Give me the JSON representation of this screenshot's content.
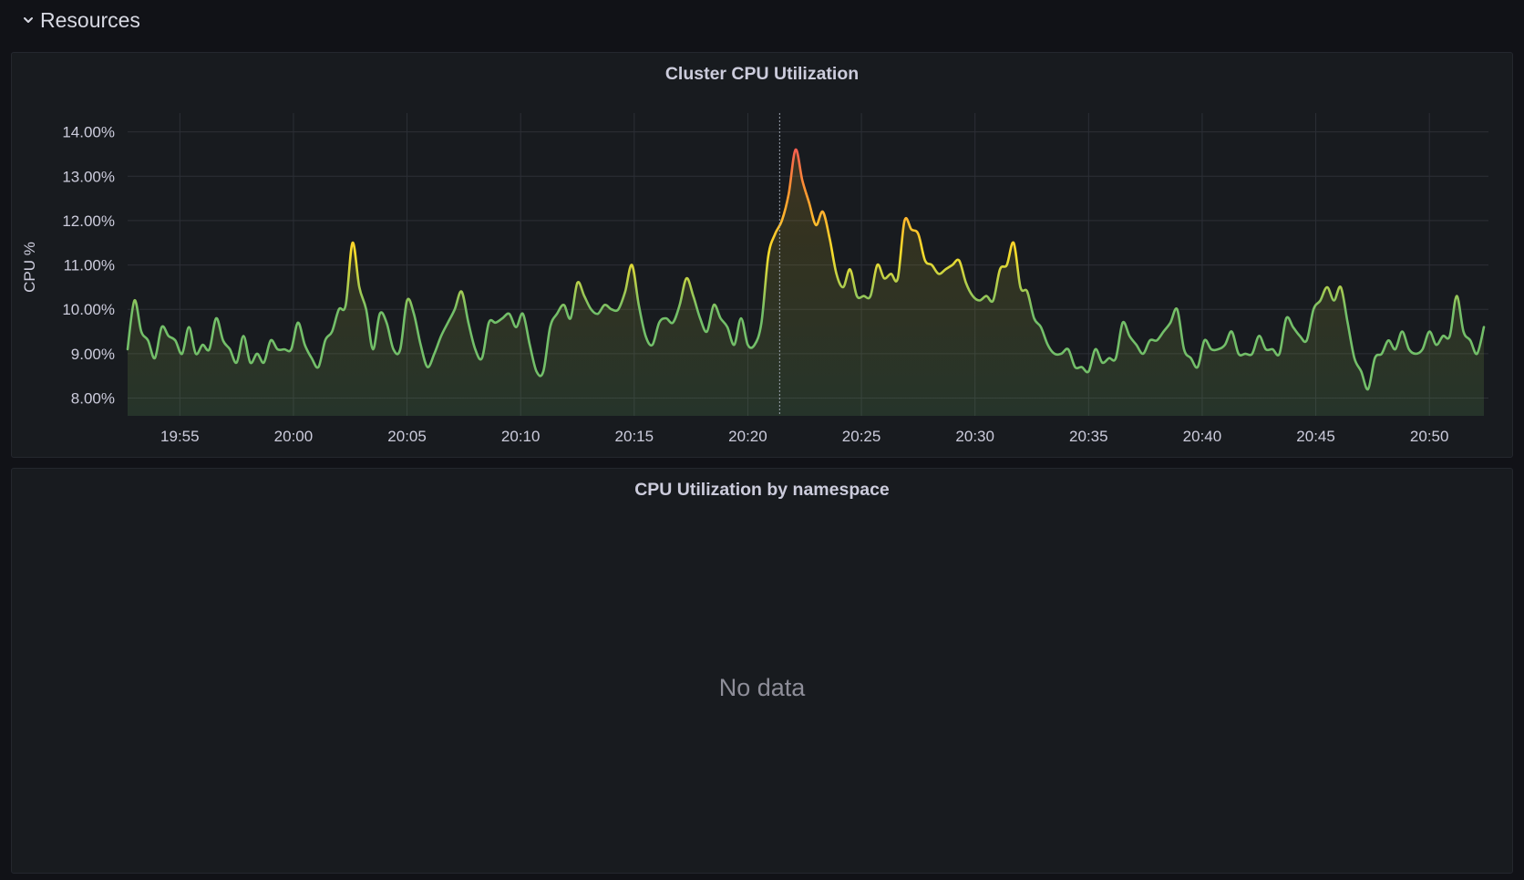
{
  "row": {
    "title": "Resources",
    "icon": "chevron-down-icon"
  },
  "panels": {
    "cpu": {
      "title": "Cluster CPU Utilization"
    },
    "namespace": {
      "title": "CPU Utilization by namespace",
      "empty_text": "No data"
    }
  },
  "colors": {
    "background": "#111217",
    "panel": "#181b1f",
    "low": "#73bf69",
    "mid": "#fade2a",
    "high": "#ff9830",
    "peak": "#f2495c"
  },
  "chart_data": {
    "type": "line",
    "title": "Cluster CPU Utilization",
    "xlabel": "",
    "ylabel": "CPU %",
    "ylim": [
      7.6,
      14.3
    ],
    "y_ticks": [
      "8.00%",
      "9.00%",
      "10.00%",
      "11.00%",
      "12.00%",
      "13.00%",
      "14.00%"
    ],
    "y_tick_values": [
      8,
      9,
      10,
      11,
      12,
      13,
      14
    ],
    "x_ticks": [
      "19:55",
      "20:00",
      "20:05",
      "20:10",
      "20:15",
      "20:20",
      "20:25",
      "20:30",
      "20:35",
      "20:40",
      "20:45",
      "20:50"
    ],
    "x_tick_minutes": [
      1195,
      1200,
      1205,
      1210,
      1215,
      1220,
      1225,
      1230,
      1235,
      1240,
      1245,
      1250
    ],
    "xlim_minutes": [
      1192.7,
      1252.6
    ],
    "grid": true,
    "hover_time_minutes": 1221.4,
    "series": [
      {
        "values": [
          [
            1192.7,
            9.1
          ],
          [
            1193.0,
            10.2
          ],
          [
            1193.3,
            9.5
          ],
          [
            1193.6,
            9.3
          ],
          [
            1193.9,
            8.9
          ],
          [
            1194.2,
            9.6
          ],
          [
            1194.5,
            9.4
          ],
          [
            1194.8,
            9.3
          ],
          [
            1195.1,
            9.0
          ],
          [
            1195.4,
            9.6
          ],
          [
            1195.7,
            9.0
          ],
          [
            1196.0,
            9.2
          ],
          [
            1196.3,
            9.1
          ],
          [
            1196.6,
            9.8
          ],
          [
            1196.9,
            9.3
          ],
          [
            1197.2,
            9.1
          ],
          [
            1197.5,
            8.8
          ],
          [
            1197.8,
            9.4
          ],
          [
            1198.1,
            8.8
          ],
          [
            1198.4,
            9.0
          ],
          [
            1198.7,
            8.8
          ],
          [
            1199.0,
            9.3
          ],
          [
            1199.3,
            9.1
          ],
          [
            1199.6,
            9.1
          ],
          [
            1199.9,
            9.1
          ],
          [
            1200.2,
            9.7
          ],
          [
            1200.5,
            9.2
          ],
          [
            1200.8,
            8.9
          ],
          [
            1201.1,
            8.7
          ],
          [
            1201.4,
            9.3
          ],
          [
            1201.7,
            9.5
          ],
          [
            1202.0,
            10.0
          ],
          [
            1202.3,
            10.1
          ],
          [
            1202.6,
            11.5
          ],
          [
            1202.9,
            10.5
          ],
          [
            1203.2,
            10.0
          ],
          [
            1203.5,
            9.1
          ],
          [
            1203.8,
            9.9
          ],
          [
            1204.1,
            9.7
          ],
          [
            1204.4,
            9.1
          ],
          [
            1204.7,
            9.1
          ],
          [
            1205.0,
            10.2
          ],
          [
            1205.3,
            9.9
          ],
          [
            1205.6,
            9.2
          ],
          [
            1205.9,
            8.7
          ],
          [
            1206.2,
            9.0
          ],
          [
            1206.5,
            9.4
          ],
          [
            1206.8,
            9.7
          ],
          [
            1207.1,
            10.0
          ],
          [
            1207.4,
            10.4
          ],
          [
            1207.7,
            9.7
          ],
          [
            1208.0,
            9.1
          ],
          [
            1208.3,
            8.9
          ],
          [
            1208.6,
            9.7
          ],
          [
            1208.9,
            9.7
          ],
          [
            1209.2,
            9.8
          ],
          [
            1209.5,
            9.9
          ],
          [
            1209.8,
            9.6
          ],
          [
            1210.1,
            9.9
          ],
          [
            1210.4,
            9.2
          ],
          [
            1210.7,
            8.6
          ],
          [
            1211.0,
            8.6
          ],
          [
            1211.3,
            9.6
          ],
          [
            1211.6,
            9.9
          ],
          [
            1211.9,
            10.1
          ],
          [
            1212.2,
            9.8
          ],
          [
            1212.5,
            10.6
          ],
          [
            1212.8,
            10.3
          ],
          [
            1213.1,
            10.0
          ],
          [
            1213.4,
            9.9
          ],
          [
            1213.7,
            10.1
          ],
          [
            1214.0,
            10.0
          ],
          [
            1214.3,
            10.0
          ],
          [
            1214.6,
            10.4
          ],
          [
            1214.9,
            11.0
          ],
          [
            1215.2,
            10.1
          ],
          [
            1215.5,
            9.4
          ],
          [
            1215.8,
            9.2
          ],
          [
            1216.1,
            9.7
          ],
          [
            1216.4,
            9.8
          ],
          [
            1216.7,
            9.7
          ],
          [
            1217.0,
            10.1
          ],
          [
            1217.3,
            10.7
          ],
          [
            1217.6,
            10.3
          ],
          [
            1217.9,
            9.8
          ],
          [
            1218.2,
            9.5
          ],
          [
            1218.5,
            10.1
          ],
          [
            1218.8,
            9.8
          ],
          [
            1219.1,
            9.6
          ],
          [
            1219.4,
            9.2
          ],
          [
            1219.7,
            9.8
          ],
          [
            1220.0,
            9.2
          ],
          [
            1220.3,
            9.2
          ],
          [
            1220.6,
            9.7
          ],
          [
            1220.9,
            11.2
          ],
          [
            1221.2,
            11.7
          ],
          [
            1221.5,
            12.0
          ],
          [
            1221.8,
            12.6
          ],
          [
            1222.1,
            13.6
          ],
          [
            1222.4,
            12.9
          ],
          [
            1222.7,
            12.4
          ],
          [
            1223.0,
            11.9
          ],
          [
            1223.3,
            12.2
          ],
          [
            1223.6,
            11.6
          ],
          [
            1223.9,
            10.8
          ],
          [
            1224.2,
            10.5
          ],
          [
            1224.5,
            10.9
          ],
          [
            1224.8,
            10.3
          ],
          [
            1225.1,
            10.3
          ],
          [
            1225.4,
            10.3
          ],
          [
            1225.7,
            11.0
          ],
          [
            1226.0,
            10.7
          ],
          [
            1226.3,
            10.8
          ],
          [
            1226.6,
            10.7
          ],
          [
            1226.9,
            12.0
          ],
          [
            1227.2,
            11.8
          ],
          [
            1227.5,
            11.7
          ],
          [
            1227.8,
            11.1
          ],
          [
            1228.1,
            11.0
          ],
          [
            1228.4,
            10.8
          ],
          [
            1228.7,
            10.9
          ],
          [
            1229.0,
            11.0
          ],
          [
            1229.3,
            11.1
          ],
          [
            1229.6,
            10.6
          ],
          [
            1229.9,
            10.3
          ],
          [
            1230.2,
            10.2
          ],
          [
            1230.5,
            10.3
          ],
          [
            1230.8,
            10.2
          ],
          [
            1231.1,
            10.9
          ],
          [
            1231.4,
            11.0
          ],
          [
            1231.7,
            11.5
          ],
          [
            1232.0,
            10.5
          ],
          [
            1232.3,
            10.4
          ],
          [
            1232.6,
            9.8
          ],
          [
            1232.9,
            9.6
          ],
          [
            1233.2,
            9.2
          ],
          [
            1233.5,
            9.0
          ],
          [
            1233.8,
            9.0
          ],
          [
            1234.1,
            9.1
          ],
          [
            1234.4,
            8.7
          ],
          [
            1234.7,
            8.7
          ],
          [
            1235.0,
            8.6
          ],
          [
            1235.3,
            9.1
          ],
          [
            1235.6,
            8.8
          ],
          [
            1235.9,
            8.9
          ],
          [
            1236.2,
            8.9
          ],
          [
            1236.5,
            9.7
          ],
          [
            1236.8,
            9.4
          ],
          [
            1237.1,
            9.2
          ],
          [
            1237.4,
            9.0
          ],
          [
            1237.7,
            9.3
          ],
          [
            1238.0,
            9.3
          ],
          [
            1238.3,
            9.5
          ],
          [
            1238.6,
            9.7
          ],
          [
            1238.9,
            10.0
          ],
          [
            1239.2,
            9.1
          ],
          [
            1239.5,
            8.9
          ],
          [
            1239.8,
            8.7
          ],
          [
            1240.1,
            9.3
          ],
          [
            1240.4,
            9.1
          ],
          [
            1240.7,
            9.1
          ],
          [
            1241.0,
            9.2
          ],
          [
            1241.3,
            9.5
          ],
          [
            1241.6,
            9.0
          ],
          [
            1241.9,
            9.0
          ],
          [
            1242.2,
            9.0
          ],
          [
            1242.5,
            9.4
          ],
          [
            1242.8,
            9.1
          ],
          [
            1243.1,
            9.1
          ],
          [
            1243.4,
            9.0
          ],
          [
            1243.7,
            9.8
          ],
          [
            1244.0,
            9.6
          ],
          [
            1244.3,
            9.4
          ],
          [
            1244.6,
            9.3
          ],
          [
            1244.9,
            10.0
          ],
          [
            1245.2,
            10.2
          ],
          [
            1245.5,
            10.5
          ],
          [
            1245.8,
            10.2
          ],
          [
            1246.1,
            10.5
          ],
          [
            1246.4,
            9.7
          ],
          [
            1246.7,
            8.9
          ],
          [
            1247.0,
            8.6
          ],
          [
            1247.3,
            8.2
          ],
          [
            1247.6,
            8.9
          ],
          [
            1247.9,
            9.0
          ],
          [
            1248.2,
            9.3
          ],
          [
            1248.5,
            9.1
          ],
          [
            1248.8,
            9.5
          ],
          [
            1249.1,
            9.1
          ],
          [
            1249.4,
            9.0
          ],
          [
            1249.7,
            9.1
          ],
          [
            1250.0,
            9.5
          ],
          [
            1250.3,
            9.2
          ],
          [
            1250.6,
            9.4
          ],
          [
            1250.9,
            9.4
          ],
          [
            1251.2,
            10.3
          ],
          [
            1251.5,
            9.5
          ],
          [
            1251.8,
            9.3
          ],
          [
            1252.1,
            9.0
          ],
          [
            1252.4,
            9.6
          ]
        ]
      }
    ]
  }
}
